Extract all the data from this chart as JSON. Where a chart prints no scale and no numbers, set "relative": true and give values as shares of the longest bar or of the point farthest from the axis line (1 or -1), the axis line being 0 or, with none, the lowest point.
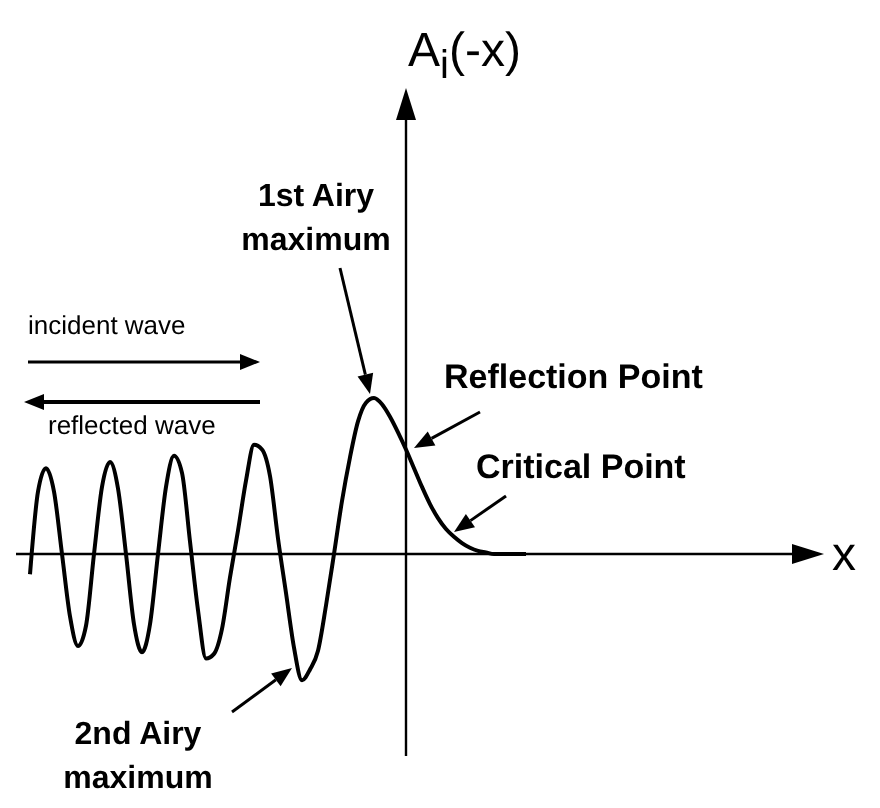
{
  "chart_data": {
    "type": "line",
    "relative": true,
    "categories": [
      null,
      null,
      null,
      null,
      null,
      null,
      null,
      null,
      null,
      null,
      null,
      null,
      null,
      null,
      null,
      null,
      null,
      null,
      null,
      null,
      null,
      null,
      null,
      null,
      null,
      null,
      null,
      null,
      null,
      null,
      null,
      null,
      null,
      null,
      null,
      null,
      null,
      null,
      null,
      null,
      null,
      null,
      null,
      null,
      null,
      null,
      null,
      null,
      null,
      null,
      null,
      null,
      null,
      null,
      null,
      null,
      null,
      null,
      null,
      null,
      null,
      null,
      null
    ],
    "series": [
      {
        "color": "#000000",
        "values": [
          -0.13,
          0.4,
          0.55,
          0.4,
          0,
          -0.4,
          -0.59,
          -0.46,
          0,
          0.43,
          0.59,
          0.42,
          0,
          -0.45,
          -0.63,
          -0.45,
          0,
          0.43,
          0.63,
          0.52,
          0.08,
          -0.36,
          -0.67,
          -0.64,
          -0.48,
          -0.15,
          0.15,
          0.47,
          0.7,
          0.67,
          0.5,
          0.1,
          -0.25,
          -0.6,
          -0.81,
          -0.74,
          -0.62,
          -0.33,
          0,
          0.34,
          0.62,
          0.85,
          0.97,
          1,
          0.96,
          0.88,
          0.78,
          0.67,
          0.55,
          0.43,
          0.32,
          0.23,
          0.16,
          0.11,
          0.07,
          0.04,
          0.02,
          0.01,
          0,
          0,
          0,
          0,
          0
        ]
      }
    ],
    "annotations": [
      "A$_{i}$(-x)",
      "x",
      "1st Airy maximum",
      "incident wave",
      "reflected wave",
      "Reflection Point",
      "Critical Point",
      "2nd Airy maximum"
    ]
  }
}
